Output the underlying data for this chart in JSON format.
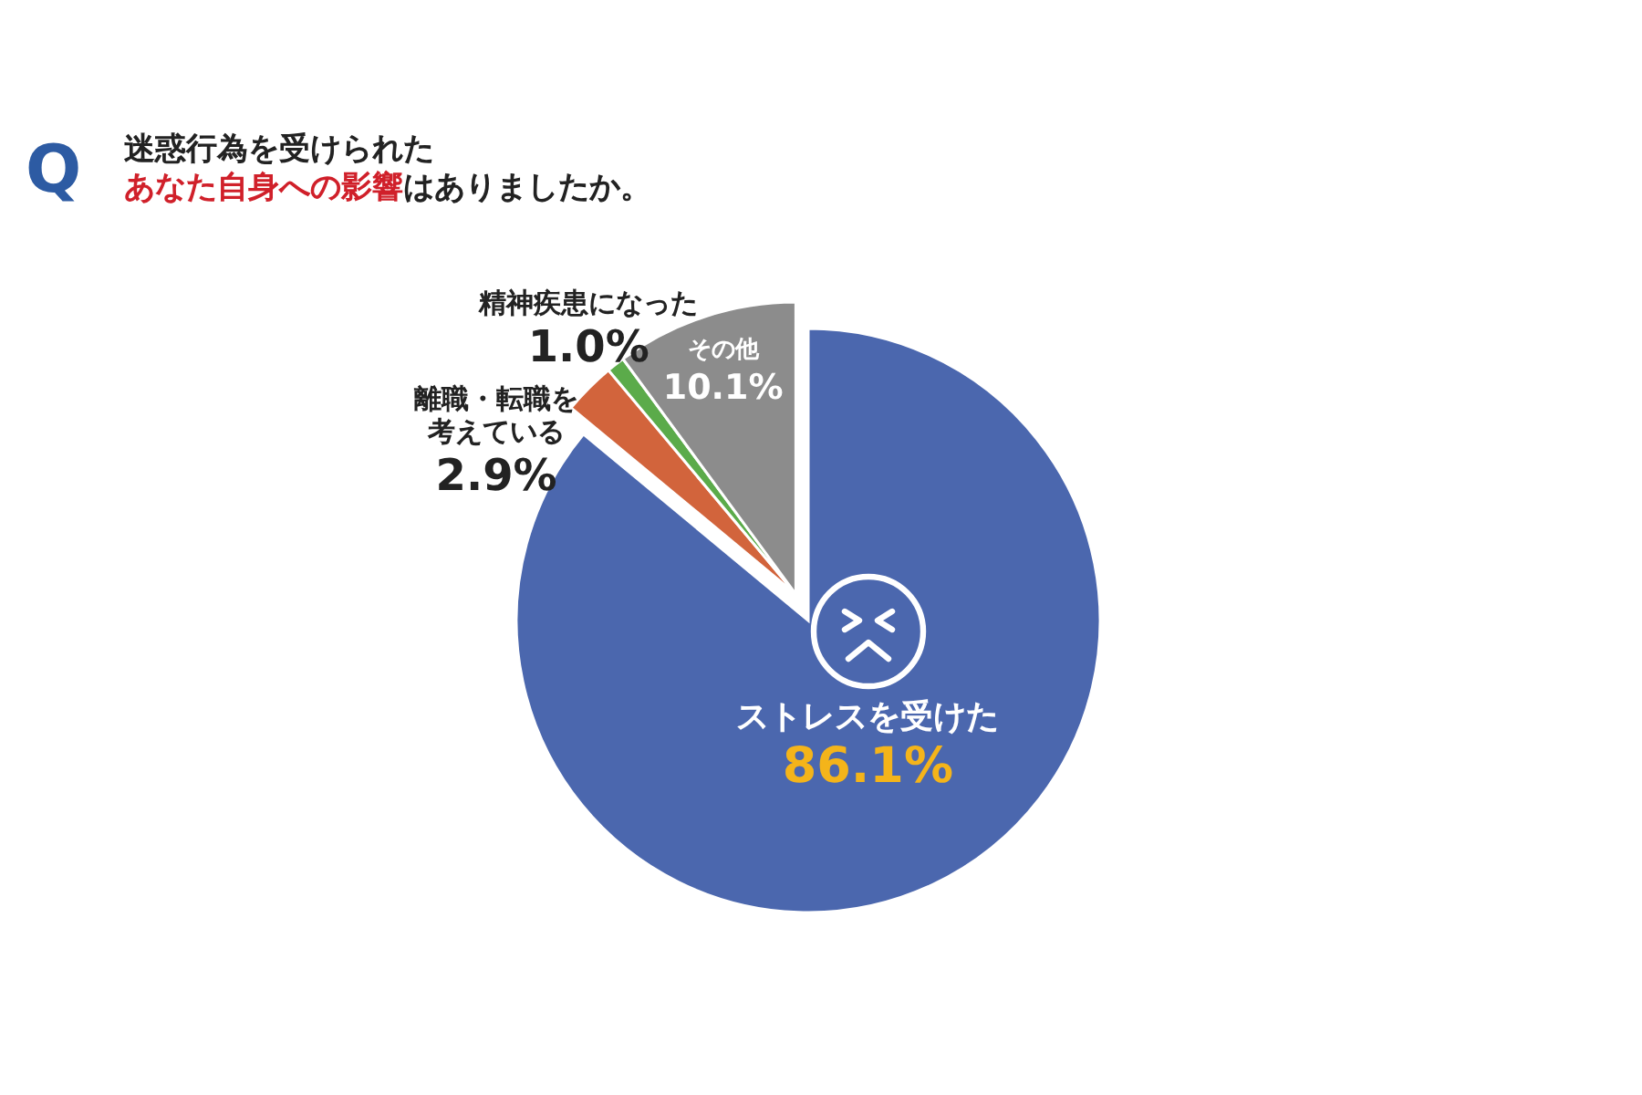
{
  "chart_data": {
    "type": "pie",
    "title": "迷惑行為を受けられた",
    "subtitle": "あなた自身への影響はありましたか。",
    "annotations": [
      "Q"
    ],
    "categories": [
      "ストレスを受けた",
      "離職・転職を考えている",
      "精神疾患になった",
      "その他"
    ],
    "values": [
      86.1,
      2.9,
      1.0,
      10.1
    ],
    "value_labels": [
      "86.1%",
      "2.9%",
      "1.0%",
      "10.1%"
    ],
    "colors": [
      "#4b67ae",
      "#d2643c",
      "#5bab4a",
      "#8c8c8c"
    ]
  }
}
